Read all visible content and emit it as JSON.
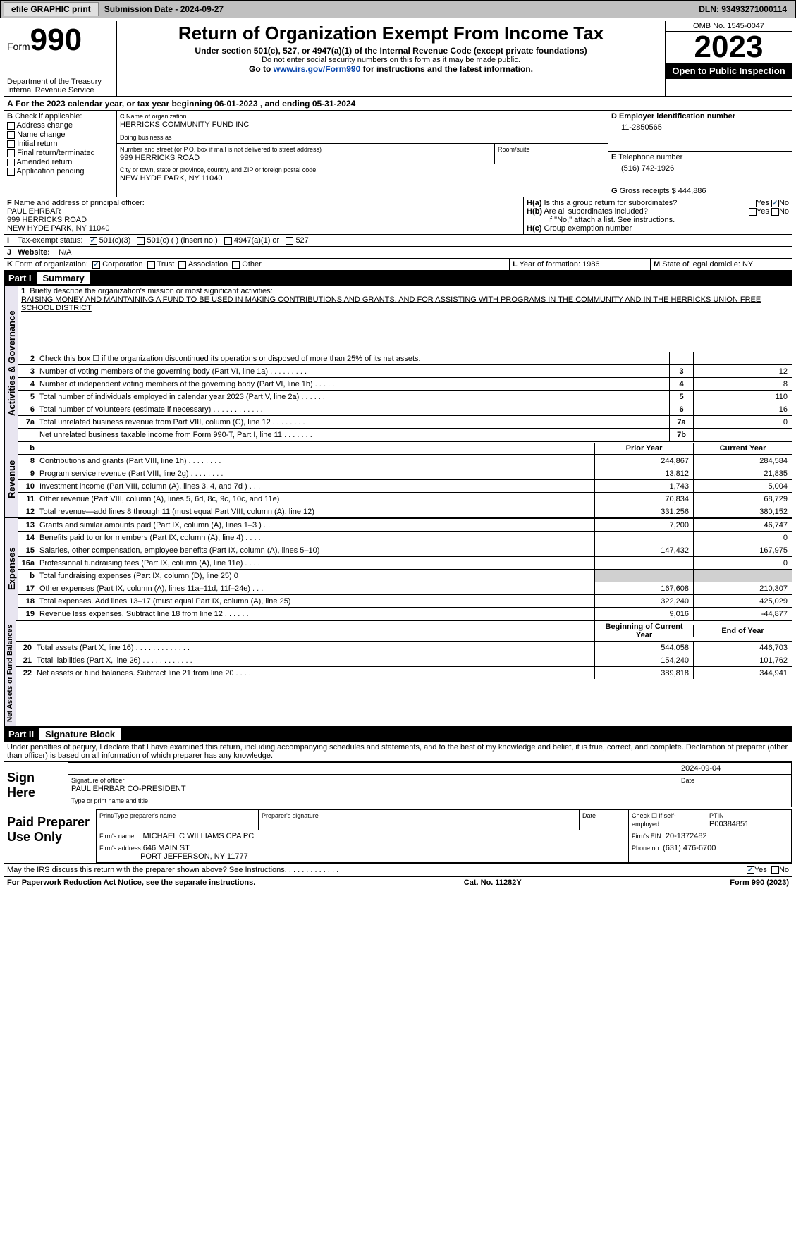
{
  "topbar": {
    "efile": "efile GRAPHIC print",
    "submission_label": "Submission Date - 2024-09-27",
    "dln_label": "DLN: 93493271000114"
  },
  "header": {
    "form_word": "Form",
    "form_num": "990",
    "dept": "Department of the Treasury",
    "irs": "Internal Revenue Service",
    "title": "Return of Organization Exempt From Income Tax",
    "sub1": "Under section 501(c), 527, or 4947(a)(1) of the Internal Revenue Code (except private foundations)",
    "sub2": "Do not enter social security numbers on this form as it may be made public.",
    "goto": "Go to ",
    "goto_link": "www.irs.gov/Form990",
    "goto2": " for instructions and the latest information.",
    "omb": "OMB No. 1545-0047",
    "year": "2023",
    "inspect": "Open to Public Inspection"
  },
  "A": {
    "text": "For the 2023 calendar year, or tax year beginning 06-01-2023    , and ending 05-31-2024"
  },
  "B": {
    "label": "Check if applicable:",
    "opts": [
      "Address change",
      "Name change",
      "Initial return",
      "Final return/terminated",
      "Amended return",
      "Application pending"
    ]
  },
  "C": {
    "name_lbl": "Name of organization",
    "name": "HERRICKS COMMUNITY FUND INC",
    "dba_lbl": "Doing business as",
    "street_lbl": "Number and street (or P.O. box if mail is not delivered to street address)",
    "street": "999 HERRICKS ROAD",
    "room_lbl": "Room/suite",
    "city_lbl": "City or town, state or province, country, and ZIP or foreign postal code",
    "city": "NEW HYDE PARK, NY  11040"
  },
  "D": {
    "lbl": "Employer identification number",
    "val": "11-2850565"
  },
  "E": {
    "lbl": "Telephone number",
    "val": "(516) 742-1926"
  },
  "G": {
    "lbl": "Gross receipts $",
    "val": "444,886"
  },
  "F": {
    "lbl": "Name and address of principal officer:",
    "name": "PAUL EHRBAR",
    "addr1": "999 HERRICKS ROAD",
    "addr2": "NEW HYDE PARK, NY  11040"
  },
  "H": {
    "a": "Is this a group return for subordinates?",
    "b": "Are all subordinates included?",
    "b2": "If \"No,\" attach a list. See instructions.",
    "c": "Group exemption number",
    "yes": "Yes",
    "no": "No"
  },
  "I": {
    "lbl": "Tax-exempt status:",
    "o1": "501(c)(3)",
    "o2": "501(c) (  ) (insert no.)",
    "o3": "4947(a)(1) or",
    "o4": "527"
  },
  "J": {
    "lbl": "Website:",
    "val": "N/A"
  },
  "K": {
    "lbl": "Form of organization:",
    "o1": "Corporation",
    "o2": "Trust",
    "o3": "Association",
    "o4": "Other"
  },
  "L": {
    "lbl": "Year of formation:",
    "val": "1986"
  },
  "M": {
    "lbl": "State of legal domicile:",
    "val": "NY"
  },
  "part1": {
    "label": "Part I",
    "title": "Summary"
  },
  "mission": {
    "q": "Briefly describe the organization's mission or most significant activities:",
    "text": "RAISING MONEY AND MAINTAINING A FUND TO BE USED IN MAKING CONTRIBUTIONS AND GRANTS, AND FOR ASSISTING WITH PROGRAMS IN THE COMMUNITY AND IN THE HERRICKS UNION FREE SCHOOL DISTRICT"
  },
  "lines_gov": [
    {
      "n": "2",
      "d": "Check this box ☐  if the organization discontinued its operations or disposed of more than 25% of its net assets.",
      "box": "",
      "v": ""
    },
    {
      "n": "3",
      "d": "Number of voting members of the governing body (Part VI, line 1a)   .    .    .    .    .    .    .    .    .",
      "box": "3",
      "v": "12"
    },
    {
      "n": "4",
      "d": "Number of independent voting members of the governing body (Part VI, line 1b)   .    .    .    .    .",
      "box": "4",
      "v": "8"
    },
    {
      "n": "5",
      "d": "Total number of individuals employed in calendar year 2023 (Part V, line 2a)   .    .    .    .    .    .",
      "box": "5",
      "v": "110"
    },
    {
      "n": "6",
      "d": "Total number of volunteers (estimate if necessary)    .    .    .    .    .    .    .    .    .    .    .    .",
      "box": "6",
      "v": "16"
    },
    {
      "n": "7a",
      "d": "Total unrelated business revenue from Part VIII, column (C), line 12   .    .    .    .    .    .    .    .",
      "box": "7a",
      "v": "0"
    },
    {
      "n": "",
      "d": "Net unrelated business taxable income from Form 990-T, Part I, line 11   .    .    .    .    .    .    .",
      "box": "7b",
      "v": ""
    }
  ],
  "colhdr": {
    "b": "b",
    "py": "Prior Year",
    "cy": "Current Year"
  },
  "lines_rev": [
    {
      "n": "8",
      "d": "Contributions and grants (Part VIII, line 1h)    .    .    .    .    .    .    .    .",
      "p": "244,867",
      "c": "284,584"
    },
    {
      "n": "9",
      "d": "Program service revenue (Part VIII, line 2g)    .    .    .    .    .    .    .    .",
      "p": "13,812",
      "c": "21,835"
    },
    {
      "n": "10",
      "d": "Investment income (Part VIII, column (A), lines 3, 4, and 7d )    .    .    .",
      "p": "1,743",
      "c": "5,004"
    },
    {
      "n": "11",
      "d": "Other revenue (Part VIII, column (A), lines 5, 6d, 8c, 9c, 10c, and 11e)",
      "p": "70,834",
      "c": "68,729"
    },
    {
      "n": "12",
      "d": "Total revenue—add lines 8 through 11 (must equal Part VIII, column (A), line 12)",
      "p": "331,256",
      "c": "380,152"
    }
  ],
  "lines_exp": [
    {
      "n": "13",
      "d": "Grants and similar amounts paid (Part IX, column (A), lines 1–3 )    .    .",
      "p": "7,200",
      "c": "46,747"
    },
    {
      "n": "14",
      "d": "Benefits paid to or for members (Part IX, column (A), line 4)   .    .    .    .",
      "p": "",
      "c": "0"
    },
    {
      "n": "15",
      "d": "Salaries, other compensation, employee benefits (Part IX, column (A), lines 5–10)",
      "p": "147,432",
      "c": "167,975"
    },
    {
      "n": "16a",
      "d": "Professional fundraising fees (Part IX, column (A), line 11e)    .    .    .    .",
      "p": "",
      "c": "0"
    },
    {
      "n": "b",
      "d": "Total fundraising expenses (Part IX, column (D), line 25) 0",
      "p": "grey",
      "c": "grey"
    },
    {
      "n": "17",
      "d": "Other expenses (Part IX, column (A), lines 11a–11d, 11f–24e)    .    .    .",
      "p": "167,608",
      "c": "210,307"
    },
    {
      "n": "18",
      "d": "Total expenses. Add lines 13–17 (must equal Part IX, column (A), line 25)",
      "p": "322,240",
      "c": "425,029"
    },
    {
      "n": "19",
      "d": "Revenue less expenses. Subtract line 18 from line 12   .    .    .    .    .    .",
      "p": "9,016",
      "c": "-44,877"
    }
  ],
  "colhdr2": {
    "py": "Beginning of Current Year",
    "cy": "End of Year"
  },
  "lines_net": [
    {
      "n": "20",
      "d": "Total assets (Part X, line 16)   .    .    .    .    .    .    .    .    .    .    .    .    .",
      "p": "544,058",
      "c": "446,703"
    },
    {
      "n": "21",
      "d": "Total liabilities (Part X, line 26)   .    .    .    .    .    .    .    .    .    .    .    .",
      "p": "154,240",
      "c": "101,762"
    },
    {
      "n": "22",
      "d": "Net assets or fund balances. Subtract line 21 from line 20   .    .    .    .",
      "p": "389,818",
      "c": "344,941"
    }
  ],
  "part2": {
    "label": "Part II",
    "title": "Signature Block"
  },
  "perjury": "Under penalties of perjury, I declare that I have examined this return, including accompanying schedules and statements, and to the best of my knowledge and belief, it is true, correct, and complete. Declaration of preparer (other than officer) is based on all information of which preparer has any knowledge.",
  "sign": {
    "here": "Sign Here",
    "date": "2024-09-04",
    "sig_lbl": "Signature of officer",
    "officer": "PAUL EHRBAR  CO-PRESIDENT",
    "type_lbl": "Type or print name and title",
    "date_lbl": "Date"
  },
  "paid": {
    "lbl": "Paid Preparer Use Only",
    "name_lbl": "Print/Type preparer's name",
    "sig_lbl": "Preparer's signature",
    "date_lbl": "Date",
    "chk": "Check ☐ if self-employed",
    "ptin_lbl": "PTIN",
    "ptin": "P00384851",
    "firm_lbl": "Firm's name",
    "firm": "MICHAEL C WILLIAMS CPA PC",
    "ein_lbl": "Firm's EIN",
    "ein": "20-1372482",
    "addr_lbl": "Firm's address",
    "addr1": "646 MAIN ST",
    "addr2": "PORT JEFFERSON, NY  11777",
    "phone_lbl": "Phone no.",
    "phone": "(631) 476-6700"
  },
  "discuss": "May the IRS discuss this return with the preparer shown above? See Instructions.    .    .    .    .    .    .    .    .    .    .    .    .",
  "footer": {
    "l": "For Paperwork Reduction Act Notice, see the separate instructions.",
    "m": "Cat. No. 11282Y",
    "r": "Form 990 (2023)"
  },
  "tabs": {
    "gov": "Activities & Governance",
    "rev": "Revenue",
    "exp": "Expenses",
    "net": "Net Assets or Fund Balances"
  },
  "letters": {
    "A": "A",
    "B": "B",
    "C": "C",
    "D": "D",
    "E": "E",
    "F": "F",
    "G": "G",
    "H": "H",
    "I": "I",
    "J": "J",
    "K": "K",
    "L": "L",
    "M": "M",
    "Ha": "H(a)",
    "Hb": "H(b)",
    "Hc": "H(c)"
  }
}
